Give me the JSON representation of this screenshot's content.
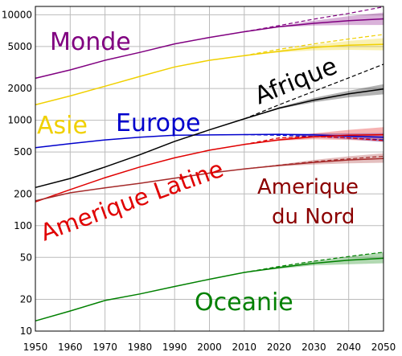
{
  "chart_data": {
    "type": "line",
    "y_scale": "log",
    "x_range": [
      1950,
      2050
    ],
    "y_range": [
      10,
      12000
    ],
    "x_ticks": [
      "1950",
      "1960",
      "1970",
      "1980",
      "1990",
      "2000",
      "2010",
      "2020",
      "2030",
      "2040",
      "2050"
    ],
    "y_ticks": [
      {
        "value": 10,
        "label": "10"
      },
      {
        "value": 20,
        "label": "20"
      },
      {
        "value": 50,
        "label": "50"
      },
      {
        "value": 100,
        "label": "100"
      },
      {
        "value": 200,
        "label": "200"
      },
      {
        "value": 500,
        "label": "500"
      },
      {
        "value": 1000,
        "label": "1000"
      },
      {
        "value": 2000,
        "label": "2000"
      },
      {
        "value": 5000,
        "label": "5000"
      },
      {
        "value": 10000,
        "label": "10000"
      }
    ],
    "grid": true,
    "series": [
      {
        "name": "Monde",
        "color": "#800080",
        "points": [
          [
            1950,
            2500
          ],
          [
            1960,
            3000
          ],
          [
            1970,
            3700
          ],
          [
            1980,
            4400
          ],
          [
            1990,
            5300
          ],
          [
            2000,
            6100
          ],
          [
            2010,
            6900
          ],
          [
            2020,
            7700
          ],
          [
            2030,
            8300
          ],
          [
            2040,
            8800
          ],
          [
            2050,
            9150
          ]
        ],
        "projection_low": [
          [
            2010,
            6900
          ],
          [
            2020,
            7600
          ],
          [
            2030,
            7900
          ],
          [
            2040,
            8000
          ],
          [
            2050,
            8000
          ]
        ],
        "projection_high": [
          [
            2010,
            6900
          ],
          [
            2020,
            7800
          ],
          [
            2030,
            8800
          ],
          [
            2040,
            9700
          ],
          [
            2050,
            10500
          ]
        ],
        "trend": [
          [
            2010,
            6900
          ],
          [
            2020,
            7900
          ],
          [
            2030,
            9100
          ],
          [
            2040,
            10300
          ],
          [
            2050,
            11900
          ]
        ]
      },
      {
        "name": "Asie",
        "color": "#f0d000",
        "points": [
          [
            1950,
            1400
          ],
          [
            1960,
            1700
          ],
          [
            1970,
            2100
          ],
          [
            1980,
            2600
          ],
          [
            1990,
            3200
          ],
          [
            2000,
            3700
          ],
          [
            2010,
            4100
          ],
          [
            2020,
            4500
          ],
          [
            2030,
            4900
          ],
          [
            2040,
            5150
          ],
          [
            2050,
            5250
          ]
        ],
        "projection_low": [
          [
            2010,
            4100
          ],
          [
            2020,
            4400
          ],
          [
            2030,
            4600
          ],
          [
            2040,
            4650
          ],
          [
            2050,
            4600
          ]
        ],
        "projection_high": [
          [
            2010,
            4100
          ],
          [
            2020,
            4600
          ],
          [
            2030,
            5200
          ],
          [
            2040,
            5650
          ],
          [
            2050,
            6000
          ]
        ],
        "trend": [
          [
            2010,
            4100
          ],
          [
            2020,
            4700
          ],
          [
            2030,
            5300
          ],
          [
            2040,
            5900
          ],
          [
            2050,
            6500
          ]
        ]
      },
      {
        "name": "Europe",
        "color": "#0000cc",
        "points": [
          [
            1950,
            550
          ],
          [
            1960,
            600
          ],
          [
            1970,
            650
          ],
          [
            1980,
            690
          ],
          [
            1990,
            720
          ],
          [
            2000,
            725
          ],
          [
            2010,
            730
          ],
          [
            2020,
            735
          ],
          [
            2030,
            725
          ],
          [
            2040,
            705
          ],
          [
            2050,
            690
          ]
        ],
        "projection_low": [
          [
            2010,
            730
          ],
          [
            2020,
            730
          ],
          [
            2030,
            700
          ],
          [
            2040,
            660
          ],
          [
            2050,
            620
          ]
        ],
        "projection_high": [
          [
            2010,
            730
          ],
          [
            2020,
            740
          ],
          [
            2030,
            750
          ],
          [
            2040,
            750
          ],
          [
            2050,
            755
          ]
        ],
        "trend": [
          [
            2010,
            730
          ],
          [
            2020,
            720
          ],
          [
            2030,
            700
          ],
          [
            2040,
            680
          ],
          [
            2050,
            650
          ]
        ]
      },
      {
        "name": "Afrique",
        "color": "#000000",
        "points": [
          [
            1950,
            230
          ],
          [
            1960,
            280
          ],
          [
            1970,
            360
          ],
          [
            1980,
            470
          ],
          [
            1990,
            630
          ],
          [
            2000,
            810
          ],
          [
            2010,
            1030
          ],
          [
            2020,
            1300
          ],
          [
            2030,
            1550
          ],
          [
            2040,
            1780
          ],
          [
            2050,
            1980
          ]
        ],
        "projection_low": [
          [
            2010,
            1030
          ],
          [
            2020,
            1280
          ],
          [
            2030,
            1480
          ],
          [
            2040,
            1650
          ],
          [
            2050,
            1760
          ]
        ],
        "projection_high": [
          [
            2010,
            1030
          ],
          [
            2020,
            1330
          ],
          [
            2030,
            1630
          ],
          [
            2040,
            1900
          ],
          [
            2050,
            2200
          ]
        ],
        "trend": [
          [
            2010,
            1030
          ],
          [
            2020,
            1400
          ],
          [
            2030,
            1880
          ],
          [
            2040,
            2520
          ],
          [
            2050,
            3400
          ]
        ]
      },
      {
        "name": "Amerique Latine",
        "color": "#e00000",
        "points": [
          [
            1950,
            168
          ],
          [
            1960,
            220
          ],
          [
            1970,
            285
          ],
          [
            1980,
            360
          ],
          [
            1990,
            440
          ],
          [
            2000,
            520
          ],
          [
            2010,
            590
          ],
          [
            2020,
            650
          ],
          [
            2030,
            695
          ],
          [
            2040,
            720
          ],
          [
            2050,
            729
          ]
        ],
        "projection_low": [
          [
            2010,
            590
          ],
          [
            2020,
            640
          ],
          [
            2030,
            660
          ],
          [
            2040,
            650
          ],
          [
            2050,
            630
          ]
        ],
        "projection_high": [
          [
            2010,
            590
          ],
          [
            2020,
            670
          ],
          [
            2030,
            750
          ],
          [
            2040,
            810
          ],
          [
            2050,
            860
          ]
        ],
        "trend": [
          [
            2010,
            590
          ],
          [
            2020,
            680
          ],
          [
            2030,
            700
          ],
          [
            2040,
            680
          ],
          [
            2050,
            640
          ]
        ]
      },
      {
        "name": "Amerique du Nord",
        "color": "#a52a2a",
        "points": [
          [
            1950,
            172
          ],
          [
            1960,
            205
          ],
          [
            1970,
            228
          ],
          [
            1980,
            252
          ],
          [
            1990,
            282
          ],
          [
            2000,
            315
          ],
          [
            2010,
            345
          ],
          [
            2020,
            372
          ],
          [
            2030,
            398
          ],
          [
            2040,
            420
          ],
          [
            2050,
            433
          ]
        ],
        "projection_low": [
          [
            2010,
            345
          ],
          [
            2020,
            365
          ],
          [
            2030,
            380
          ],
          [
            2040,
            390
          ],
          [
            2050,
            395
          ]
        ],
        "projection_high": [
          [
            2010,
            345
          ],
          [
            2020,
            380
          ],
          [
            2030,
            420
          ],
          [
            2040,
            455
          ],
          [
            2050,
            485
          ]
        ],
        "trend": [
          [
            2010,
            345
          ],
          [
            2020,
            375
          ],
          [
            2030,
            405
          ],
          [
            2040,
            430
          ],
          [
            2050,
            455
          ]
        ]
      },
      {
        "name": "Oceanie",
        "color": "#008000",
        "points": [
          [
            1950,
            12.5
          ],
          [
            1960,
            15.5
          ],
          [
            1970,
            19.5
          ],
          [
            1980,
            22.5
          ],
          [
            1990,
            26.5
          ],
          [
            2000,
            31
          ],
          [
            2010,
            36
          ],
          [
            2020,
            40
          ],
          [
            2030,
            44
          ],
          [
            2040,
            47
          ],
          [
            2050,
            49
          ]
        ],
        "projection_low": [
          [
            2010,
            36
          ],
          [
            2020,
            39
          ],
          [
            2030,
            42
          ],
          [
            2040,
            43
          ],
          [
            2050,
            44
          ]
        ],
        "projection_high": [
          [
            2010,
            36
          ],
          [
            2020,
            41
          ],
          [
            2030,
            46
          ],
          [
            2040,
            51
          ],
          [
            2050,
            56
          ]
        ],
        "trend": [
          [
            2010,
            36
          ],
          [
            2020,
            41
          ],
          [
            2030,
            46
          ],
          [
            2040,
            51
          ],
          [
            2050,
            56
          ]
        ]
      }
    ],
    "labels": [
      {
        "text": "Monde",
        "color": "#800080"
      },
      {
        "text": "Asie",
        "color": "#f0d000"
      },
      {
        "text": "Europe",
        "color": "#0000cc"
      },
      {
        "text": "Afrique",
        "color": "#000000"
      },
      {
        "text": "Amerique Latine",
        "color": "#e00000"
      },
      {
        "text": "Amerique",
        "color": "#8b0000"
      },
      {
        "text": "du Nord",
        "color": "#8b0000"
      },
      {
        "text": "Oceanie",
        "color": "#008000"
      }
    ]
  }
}
